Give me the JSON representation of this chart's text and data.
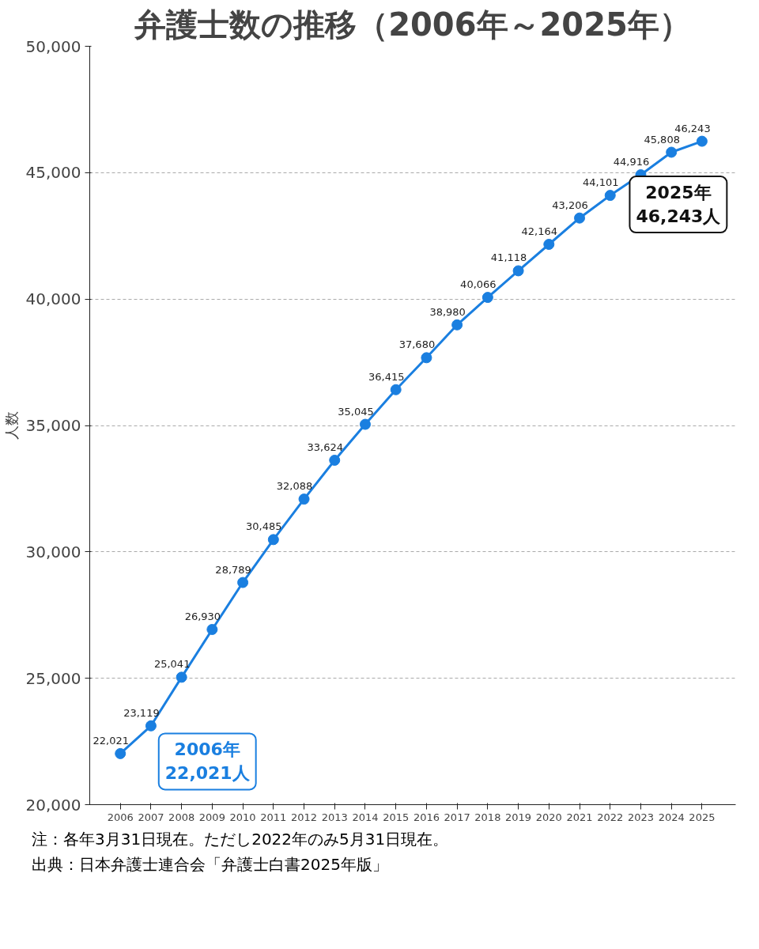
{
  "chart_data": {
    "type": "line",
    "title": "弁護士数の推移（2006年～2025年）",
    "ylabel": "人数",
    "categories": [
      "2006",
      "2007",
      "2008",
      "2009",
      "2010",
      "2011",
      "2012",
      "2013",
      "2014",
      "2015",
      "2016",
      "2017",
      "2018",
      "2019",
      "2020",
      "2021",
      "2022",
      "2023",
      "2024",
      "2025"
    ],
    "series": [
      {
        "color": "#1a7fe0",
        "values": [
          22021,
          23119,
          25041,
          26930,
          28789,
          30485,
          32088,
          33624,
          35045,
          36415,
          37680,
          38980,
          40066,
          41118,
          42164,
          43206,
          44101,
          44916,
          45808,
          46243
        ]
      }
    ],
    "ylim": [
      20000,
      50000
    ],
    "yticks": [
      {
        "value": 20000,
        "label": "20,000"
      },
      {
        "value": 25000,
        "label": "25,000"
      },
      {
        "value": 30000,
        "label": "30,000"
      },
      {
        "value": 35000,
        "label": "35,000"
      },
      {
        "value": 40000,
        "label": "40,000"
      },
      {
        "value": 45000,
        "label": "45,000"
      },
      {
        "value": 50000,
        "label": "50,000"
      }
    ],
    "grid": "y",
    "marker": "circle",
    "line_style": "solid",
    "value_labels": [
      "22,021",
      "23,119",
      "25,041",
      "26,930",
      "28,789",
      "30,485",
      "32,088",
      "33,624",
      "35,045",
      "36,415",
      "37,680",
      "38,980",
      "40,066",
      "41,118",
      "42,164",
      "43,206",
      "44,101",
      "44,916",
      "45,808",
      "46,243"
    ],
    "annotations": [
      {
        "text": "2006年\n22,021人",
        "x": "2006",
        "y": 22021
      },
      {
        "text": "2025年\n46,243人",
        "x": "2025",
        "y": 46243
      },
      "注：各年3月31日現在。ただし2022年のみ5月31日現在。",
      "出典：日本弁護士連合会「弁護士白書2025年版」"
    ]
  }
}
